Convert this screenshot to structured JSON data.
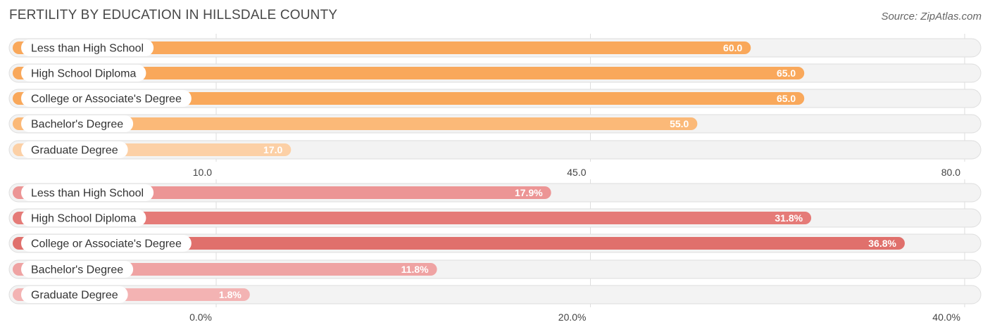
{
  "title": "FERTILITY BY EDUCATION IN HILLSDALE COUNTY",
  "source": "Source: ZipAtlas.com",
  "chart_data": [
    {
      "type": "bar",
      "orientation": "horizontal",
      "categories": [
        "Less than High School",
        "High School Diploma",
        "College or Associate's Degree",
        "Bachelor's Degree",
        "Graduate Degree"
      ],
      "values": [
        60.0,
        65.0,
        65.0,
        55.0,
        17.0
      ],
      "value_labels": [
        "60.0",
        "65.0",
        "65.0",
        "55.0",
        "17.0"
      ],
      "xlim": [
        10.0,
        80.0
      ],
      "ticks": [
        "10.0",
        "45.0",
        "80.0"
      ],
      "tick_values": [
        10.0,
        45.0,
        80.0
      ],
      "grid": true,
      "colors": [
        "#f9a85b",
        "#f9a85b",
        "#f9a85b",
        "#fbb978",
        "#fcd0a6"
      ]
    },
    {
      "type": "bar",
      "orientation": "horizontal",
      "categories": [
        "Less than High School",
        "High School Diploma",
        "College or Associate's Degree",
        "Bachelor's Degree",
        "Graduate Degree"
      ],
      "values": [
        17.9,
        31.8,
        36.8,
        11.8,
        1.8
      ],
      "value_labels": [
        "17.9%",
        "31.8%",
        "36.8%",
        "11.8%",
        "1.8%"
      ],
      "xlim": [
        0.0,
        40.0
      ],
      "ticks": [
        "0.0%",
        "20.0%",
        "40.0%"
      ],
      "tick_values": [
        0.0,
        20.0,
        40.0
      ],
      "grid": true,
      "colors": [
        "#ec9595",
        "#e57b78",
        "#e0706c",
        "#efa3a3",
        "#f3b3b3"
      ]
    }
  ]
}
